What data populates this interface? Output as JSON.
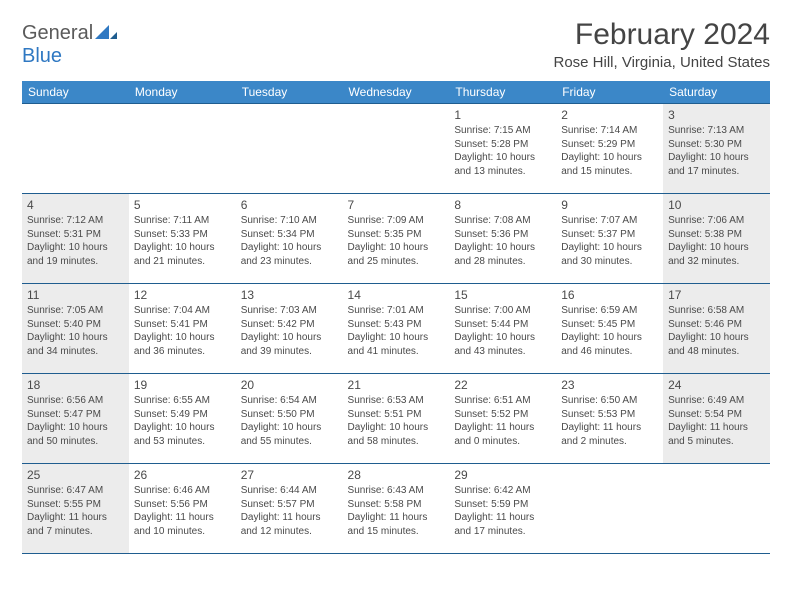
{
  "brand": {
    "general": "General",
    "blue": "Blue"
  },
  "title": "February 2024",
  "location": "Rose Hill, Virginia, United States",
  "colors": {
    "header_bg": "#3b87c8",
    "header_text": "#ffffff",
    "rule": "#1f5d8f",
    "shade": "#ececec",
    "text": "#4a4a4a",
    "logo_blue": "#2f78c2",
    "logo_gray": "#5a5a5a"
  },
  "dow": [
    "Sunday",
    "Monday",
    "Tuesday",
    "Wednesday",
    "Thursday",
    "Friday",
    "Saturday"
  ],
  "weeks": [
    [
      {
        "n": "",
        "sr": "",
        "ss": "",
        "dl": ""
      },
      {
        "n": "",
        "sr": "",
        "ss": "",
        "dl": ""
      },
      {
        "n": "",
        "sr": "",
        "ss": "",
        "dl": ""
      },
      {
        "n": "",
        "sr": "",
        "ss": "",
        "dl": ""
      },
      {
        "n": "1",
        "sr": "Sunrise: 7:15 AM",
        "ss": "Sunset: 5:28 PM",
        "dl": "Daylight: 10 hours and 13 minutes."
      },
      {
        "n": "2",
        "sr": "Sunrise: 7:14 AM",
        "ss": "Sunset: 5:29 PM",
        "dl": "Daylight: 10 hours and 15 minutes."
      },
      {
        "n": "3",
        "sr": "Sunrise: 7:13 AM",
        "ss": "Sunset: 5:30 PM",
        "dl": "Daylight: 10 hours and 17 minutes.",
        "sh": true
      }
    ],
    [
      {
        "n": "4",
        "sr": "Sunrise: 7:12 AM",
        "ss": "Sunset: 5:31 PM",
        "dl": "Daylight: 10 hours and 19 minutes.",
        "sh": true
      },
      {
        "n": "5",
        "sr": "Sunrise: 7:11 AM",
        "ss": "Sunset: 5:33 PM",
        "dl": "Daylight: 10 hours and 21 minutes."
      },
      {
        "n": "6",
        "sr": "Sunrise: 7:10 AM",
        "ss": "Sunset: 5:34 PM",
        "dl": "Daylight: 10 hours and 23 minutes."
      },
      {
        "n": "7",
        "sr": "Sunrise: 7:09 AM",
        "ss": "Sunset: 5:35 PM",
        "dl": "Daylight: 10 hours and 25 minutes."
      },
      {
        "n": "8",
        "sr": "Sunrise: 7:08 AM",
        "ss": "Sunset: 5:36 PM",
        "dl": "Daylight: 10 hours and 28 minutes."
      },
      {
        "n": "9",
        "sr": "Sunrise: 7:07 AM",
        "ss": "Sunset: 5:37 PM",
        "dl": "Daylight: 10 hours and 30 minutes."
      },
      {
        "n": "10",
        "sr": "Sunrise: 7:06 AM",
        "ss": "Sunset: 5:38 PM",
        "dl": "Daylight: 10 hours and 32 minutes.",
        "sh": true
      }
    ],
    [
      {
        "n": "11",
        "sr": "Sunrise: 7:05 AM",
        "ss": "Sunset: 5:40 PM",
        "dl": "Daylight: 10 hours and 34 minutes.",
        "sh": true
      },
      {
        "n": "12",
        "sr": "Sunrise: 7:04 AM",
        "ss": "Sunset: 5:41 PM",
        "dl": "Daylight: 10 hours and 36 minutes."
      },
      {
        "n": "13",
        "sr": "Sunrise: 7:03 AM",
        "ss": "Sunset: 5:42 PM",
        "dl": "Daylight: 10 hours and 39 minutes."
      },
      {
        "n": "14",
        "sr": "Sunrise: 7:01 AM",
        "ss": "Sunset: 5:43 PM",
        "dl": "Daylight: 10 hours and 41 minutes."
      },
      {
        "n": "15",
        "sr": "Sunrise: 7:00 AM",
        "ss": "Sunset: 5:44 PM",
        "dl": "Daylight: 10 hours and 43 minutes."
      },
      {
        "n": "16",
        "sr": "Sunrise: 6:59 AM",
        "ss": "Sunset: 5:45 PM",
        "dl": "Daylight: 10 hours and 46 minutes."
      },
      {
        "n": "17",
        "sr": "Sunrise: 6:58 AM",
        "ss": "Sunset: 5:46 PM",
        "dl": "Daylight: 10 hours and 48 minutes.",
        "sh": true
      }
    ],
    [
      {
        "n": "18",
        "sr": "Sunrise: 6:56 AM",
        "ss": "Sunset: 5:47 PM",
        "dl": "Daylight: 10 hours and 50 minutes.",
        "sh": true
      },
      {
        "n": "19",
        "sr": "Sunrise: 6:55 AM",
        "ss": "Sunset: 5:49 PM",
        "dl": "Daylight: 10 hours and 53 minutes."
      },
      {
        "n": "20",
        "sr": "Sunrise: 6:54 AM",
        "ss": "Sunset: 5:50 PM",
        "dl": "Daylight: 10 hours and 55 minutes."
      },
      {
        "n": "21",
        "sr": "Sunrise: 6:53 AM",
        "ss": "Sunset: 5:51 PM",
        "dl": "Daylight: 10 hours and 58 minutes."
      },
      {
        "n": "22",
        "sr": "Sunrise: 6:51 AM",
        "ss": "Sunset: 5:52 PM",
        "dl": "Daylight: 11 hours and 0 minutes."
      },
      {
        "n": "23",
        "sr": "Sunrise: 6:50 AM",
        "ss": "Sunset: 5:53 PM",
        "dl": "Daylight: 11 hours and 2 minutes."
      },
      {
        "n": "24",
        "sr": "Sunrise: 6:49 AM",
        "ss": "Sunset: 5:54 PM",
        "dl": "Daylight: 11 hours and 5 minutes.",
        "sh": true
      }
    ],
    [
      {
        "n": "25",
        "sr": "Sunrise: 6:47 AM",
        "ss": "Sunset: 5:55 PM",
        "dl": "Daylight: 11 hours and 7 minutes.",
        "sh": true
      },
      {
        "n": "26",
        "sr": "Sunrise: 6:46 AM",
        "ss": "Sunset: 5:56 PM",
        "dl": "Daylight: 11 hours and 10 minutes."
      },
      {
        "n": "27",
        "sr": "Sunrise: 6:44 AM",
        "ss": "Sunset: 5:57 PM",
        "dl": "Daylight: 11 hours and 12 minutes."
      },
      {
        "n": "28",
        "sr": "Sunrise: 6:43 AM",
        "ss": "Sunset: 5:58 PM",
        "dl": "Daylight: 11 hours and 15 minutes."
      },
      {
        "n": "29",
        "sr": "Sunrise: 6:42 AM",
        "ss": "Sunset: 5:59 PM",
        "dl": "Daylight: 11 hours and 17 minutes."
      },
      {
        "n": "",
        "sr": "",
        "ss": "",
        "dl": ""
      },
      {
        "n": "",
        "sr": "",
        "ss": "",
        "dl": ""
      }
    ]
  ]
}
